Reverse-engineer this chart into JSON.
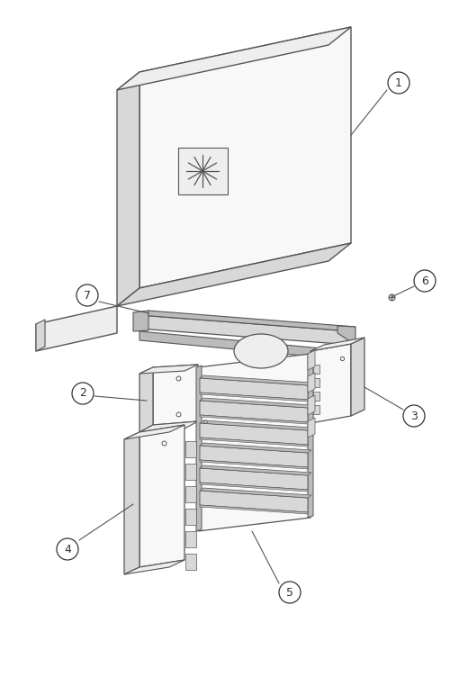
{
  "background_color": "#ffffff",
  "lc": "#555555",
  "lc_dark": "#333333",
  "fc_white": "#f8f8f8",
  "fc_light": "#eeeeee",
  "fc_mid": "#d8d8d8",
  "fc_dark": "#bbbbbb",
  "fc_edge": "#999999",
  "fig_width": 5.0,
  "fig_height": 7.52,
  "dpi": 100
}
